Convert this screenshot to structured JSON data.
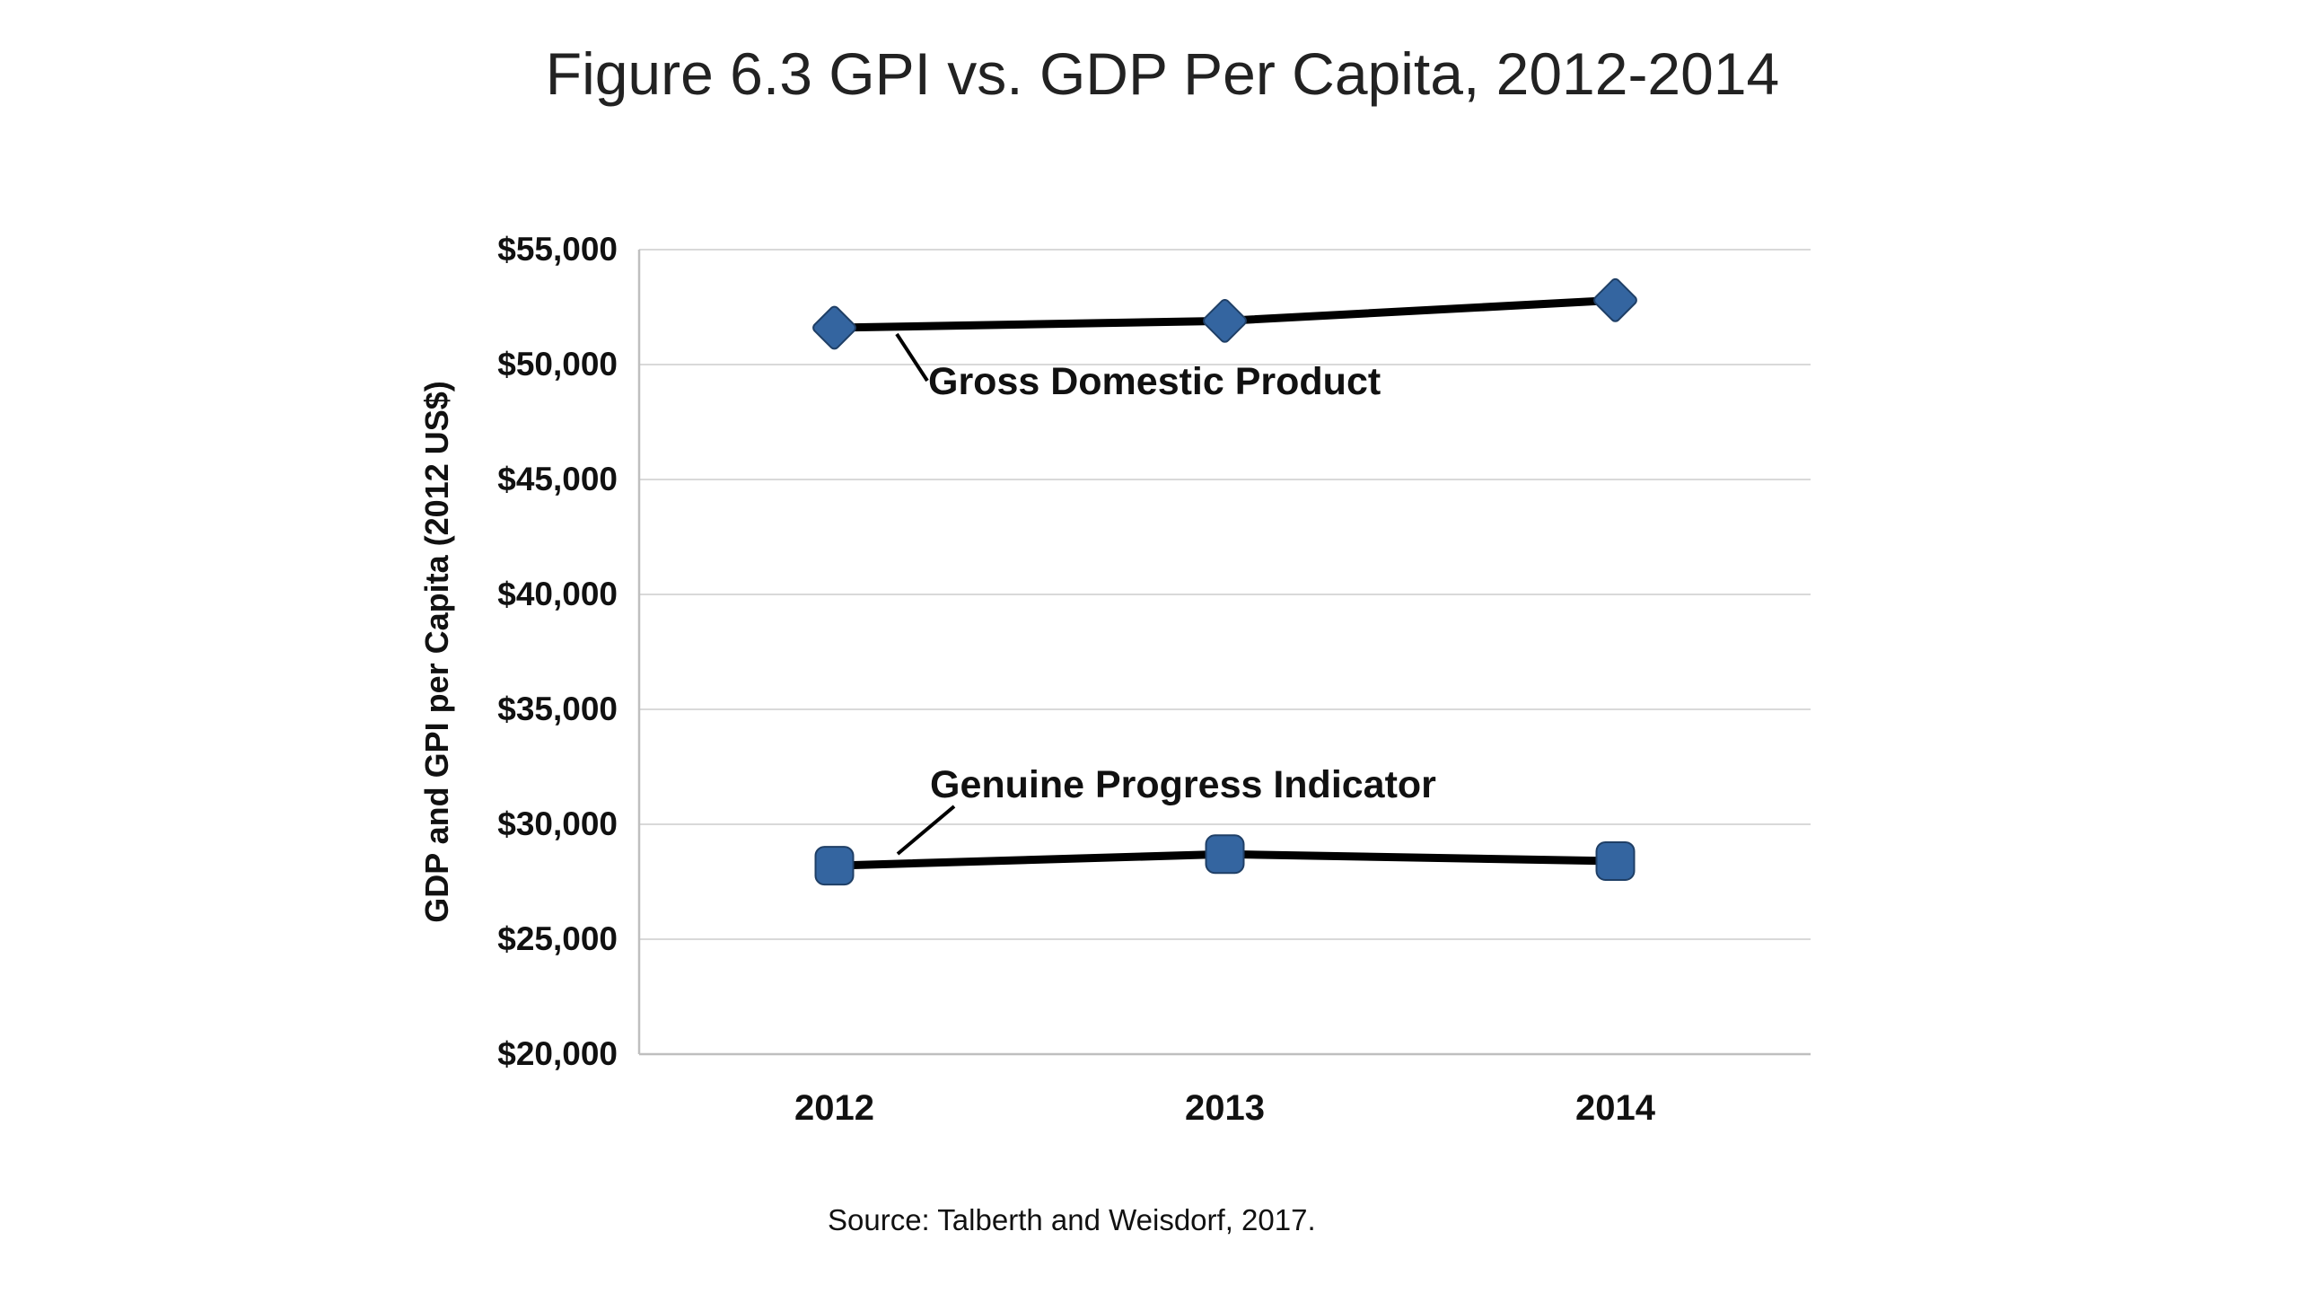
{
  "chart_data": {
    "type": "line",
    "title": "Figure 6.3 GPI vs. GDP Per Capita, 2012-2014",
    "categories": [
      "2012",
      "2013",
      "2014"
    ],
    "series": [
      {
        "name": "Gross Domestic Product",
        "marker": "diamond",
        "values": [
          51600,
          51900,
          52800
        ]
      },
      {
        "name": "Genuine Progress Indicator",
        "marker": "square",
        "values": [
          28200,
          28700,
          28400
        ]
      }
    ],
    "xlabel": "",
    "ylabel": "GDP and GPI per Capita (2012 US$)",
    "ylim": [
      20000,
      55000
    ],
    "ytick_step": 5000,
    "ytick_prefix": "$",
    "grid": true,
    "legend_position": "inline-annotations",
    "colors": {
      "line": "#000000",
      "marker_fill": "#3465a0",
      "marker_edge": "#1f3f66",
      "gridline": "#d9d9d9",
      "axis_line": "#bfbfbf",
      "text": "#111111",
      "background": "#ffffff"
    }
  },
  "source_note": "Source: Talberth and Weisdorf, 2017."
}
